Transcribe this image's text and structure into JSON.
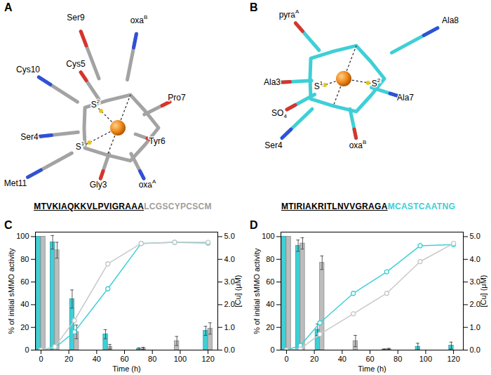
{
  "panels": [
    {
      "label": "A",
      "color": "#a3a3a3",
      "atoms": [
        {
          "text": "Ser9"
        },
        {
          "text": "Cys10"
        },
        {
          "text": "Cys5"
        },
        {
          "text": "oxa",
          "sup": "B"
        },
        {
          "text": "Pro7"
        },
        {
          "text": "S",
          "sup": "2"
        },
        {
          "text": "S",
          "sup": "1"
        },
        {
          "text": "Ser4"
        },
        {
          "text": "Tyr6"
        },
        {
          "text": "Met11"
        },
        {
          "text": "Gly3"
        },
        {
          "text": "oxa",
          "sup": "A"
        }
      ],
      "sequence": {
        "underlined": "MTVKIAQKKVLPVIGRAAA",
        "rest": "LCGSCYPCSCM",
        "rest_color": "#9e9e9e"
      }
    },
    {
      "label": "B",
      "color": "#3fcfd6",
      "atoms": [
        {
          "text": "pyra",
          "sup": "A"
        },
        {
          "text": "Ala8"
        },
        {
          "text": "Ala3"
        },
        {
          "text": "S",
          "sup": "1"
        },
        {
          "text": "S",
          "sup": "2"
        },
        {
          "text": "Ala7"
        },
        {
          "text": "SO",
          "sub": "4"
        },
        {
          "text": "Ser4"
        },
        {
          "text": "oxa",
          "sup": "B"
        }
      ],
      "sequence": {
        "underlined": "MTIRIAKRITLNVVGRAGA",
        "rest": "MCASTCAATNG",
        "rest_color": "#3fcfd6"
      }
    }
  ],
  "chart_data": [
    {
      "type": "bar",
      "title": "C",
      "x_label": "Time (h)",
      "y_label": "% of initial sMMO activity",
      "y2_label": "[Cu] (μM)",
      "x": [
        0,
        10,
        24,
        48,
        72,
        96,
        120
      ],
      "xlim": [
        -4,
        127
      ],
      "xticks": [
        0,
        20,
        40,
        60,
        80,
        100,
        120
      ],
      "ylim": [
        0,
        104
      ],
      "yticks": [
        0,
        20,
        40,
        60,
        80,
        100
      ],
      "y2lim": [
        0,
        5.2
      ],
      "y2ticks": [
        0,
        1,
        2,
        3,
        4,
        5
      ],
      "series": [
        {
          "type": "bar",
          "color": "#3fcfd6",
          "values": [
            100,
            95,
            45,
            14,
            1,
            0,
            17
          ],
          "errors": [
            0,
            6,
            8,
            4,
            1,
            0,
            4
          ]
        },
        {
          "type": "bar",
          "color": "#bdbdbd",
          "values": [
            100,
            88,
            16,
            3,
            1.5,
            8,
            19
          ],
          "errors": [
            0,
            7,
            6,
            2,
            1,
            4,
            5
          ]
        },
        {
          "type": "line",
          "axis": "y2",
          "color": "#3fcfd6",
          "marker": "open_circle",
          "values": [
            0,
            0.1,
            0.8,
            2.7,
            4.7,
            4.75,
            4.72
          ],
          "errors": [
            0,
            0.05,
            0.1,
            0.1,
            0.05,
            0.1,
            0.1
          ]
        },
        {
          "type": "line",
          "axis": "y2",
          "color": "#c8c8c8",
          "marker": "open_circle",
          "values": [
            0,
            0.15,
            1.3,
            3.8,
            4.7,
            4.75,
            4.75
          ],
          "errors": [
            0,
            0.05,
            0.1,
            0.1,
            0.05,
            0.1,
            0.1
          ]
        }
      ]
    },
    {
      "type": "bar",
      "title": "D",
      "x_label": "Time (h)",
      "y_label": "% of initial sMMO activity",
      "y2_label": "[Cu] (μM)",
      "x": [
        0,
        10,
        24,
        48,
        72,
        96,
        120
      ],
      "xlim": [
        -4,
        127
      ],
      "xticks": [
        0,
        20,
        40,
        60,
        80,
        100,
        120
      ],
      "ylim": [
        0,
        104
      ],
      "yticks": [
        0,
        20,
        40,
        60,
        80,
        100
      ],
      "y2lim": [
        0,
        5.2
      ],
      "y2ticks": [
        0,
        1,
        2,
        3,
        4,
        5
      ],
      "series": [
        {
          "type": "bar",
          "color": "#3fcfd6",
          "values": [
            100,
            92,
            18,
            0,
            0.5,
            3,
            4
          ],
          "errors": [
            0,
            5,
            5,
            0,
            0.5,
            3,
            3
          ]
        },
        {
          "type": "bar",
          "color": "#bdbdbd",
          "values": [
            100,
            94,
            77,
            8,
            1,
            0,
            0
          ],
          "errors": [
            0,
            5,
            6,
            5,
            0.5,
            0,
            0
          ]
        },
        {
          "type": "line",
          "axis": "y2",
          "color": "#3fcfd6",
          "marker": "open_circle",
          "values": [
            0,
            0.2,
            1.2,
            2.5,
            3.45,
            4.6,
            4.65
          ],
          "errors": [
            0,
            0.05,
            0.1,
            0.1,
            0.08,
            0.12,
            0.12
          ]
        },
        {
          "type": "line",
          "axis": "y2",
          "color": "#c8c8c8",
          "marker": "open_circle",
          "values": [
            0,
            0.05,
            0.7,
            1.6,
            2.5,
            3.9,
            4.7
          ],
          "errors": [
            0,
            0.05,
            0.08,
            0.1,
            0.1,
            0.08,
            0.1
          ]
        }
      ]
    }
  ]
}
